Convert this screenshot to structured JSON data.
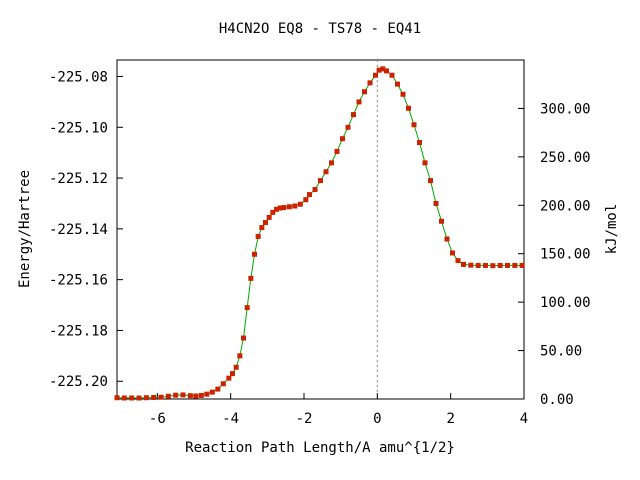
{
  "chart_data": {
    "type": "line",
    "title": "H4CN2O   EQ8 - TS78 - EQ41",
    "xlabel": "Reaction Path Length/A amu^{1/2}",
    "ylabel": "Energy/Hartree",
    "y2label": "kJ/mol",
    "xlim": [
      -7.1,
      4.0
    ],
    "ylim": [
      -225.207,
      -225.0735
    ],
    "y2lim": [
      0.0,
      350.0
    ],
    "x_ticks": [
      -6,
      -4,
      -2,
      0,
      2,
      4
    ],
    "x_tick_labels": [
      "-6",
      "-4",
      "-2",
      "0",
      "2",
      "4"
    ],
    "y_ticks": [
      -225.08,
      -225.1,
      -225.12,
      -225.14,
      -225.16,
      -225.18,
      -225.2
    ],
    "y_tick_labels": [
      "-225.08",
      "-225.10",
      "-225.12",
      "-225.14",
      "-225.16",
      "-225.18",
      "-225.20"
    ],
    "y2_ticks": [
      300,
      250,
      200,
      150,
      100,
      50,
      0
    ],
    "y2_tick_labels": [
      "300.00",
      "250.00",
      "200.00",
      "150.00",
      "100.00",
      "50.00",
      "0.00"
    ],
    "ts_marker_x": 0.0,
    "grid": false,
    "series": [
      {
        "line_color": "#00aa00",
        "marker_color": "#cc2200",
        "points": [
          [
            -7.1,
            -225.2065
          ],
          [
            -6.9,
            -225.2066
          ],
          [
            -6.7,
            -225.2066
          ],
          [
            -6.5,
            -225.2066
          ],
          [
            -6.3,
            -225.2065
          ],
          [
            -6.1,
            -225.2064
          ],
          [
            -5.9,
            -225.2063
          ],
          [
            -5.7,
            -225.2059
          ],
          [
            -5.5,
            -225.2055
          ],
          [
            -5.3,
            -225.2054
          ],
          [
            -5.1,
            -225.2057
          ],
          [
            -4.95,
            -225.2058
          ],
          [
            -4.8,
            -225.2056
          ],
          [
            -4.65,
            -225.2051
          ],
          [
            -4.5,
            -225.2043
          ],
          [
            -4.35,
            -225.2031
          ],
          [
            -4.2,
            -225.201
          ],
          [
            -4.05,
            -225.1988
          ],
          [
            -3.95,
            -225.197
          ],
          [
            -3.85,
            -225.1945
          ],
          [
            -3.75,
            -225.19
          ],
          [
            -3.65,
            -225.183
          ],
          [
            -3.55,
            -225.171
          ],
          [
            -3.45,
            -225.1595
          ],
          [
            -3.35,
            -225.15
          ],
          [
            -3.25,
            -225.143
          ],
          [
            -3.15,
            -225.1395
          ],
          [
            -3.05,
            -225.1375
          ],
          [
            -2.95,
            -225.1355
          ],
          [
            -2.85,
            -225.1335
          ],
          [
            -2.75,
            -225.1323
          ],
          [
            -2.65,
            -225.1318
          ],
          [
            -2.55,
            -225.1316
          ],
          [
            -2.4,
            -225.1313
          ],
          [
            -2.25,
            -225.131
          ],
          [
            -2.1,
            -225.1303
          ],
          [
            -1.95,
            -225.1285
          ],
          [
            -1.85,
            -225.1265
          ],
          [
            -1.7,
            -225.1245
          ],
          [
            -1.55,
            -225.121
          ],
          [
            -1.4,
            -225.1175
          ],
          [
            -1.25,
            -225.114
          ],
          [
            -1.1,
            -225.1095
          ],
          [
            -0.95,
            -225.1045
          ],
          [
            -0.8,
            -225.1
          ],
          [
            -0.65,
            -225.095
          ],
          [
            -0.5,
            -225.09
          ],
          [
            -0.35,
            -225.086
          ],
          [
            -0.2,
            -225.0825
          ],
          [
            -0.05,
            -225.0795
          ],
          [
            0.05,
            -225.0775
          ],
          [
            0.15,
            -225.077
          ],
          [
            0.25,
            -225.0778
          ],
          [
            0.4,
            -225.0795
          ],
          [
            0.55,
            -225.083
          ],
          [
            0.7,
            -225.087
          ],
          [
            0.85,
            -225.0925
          ],
          [
            1.0,
            -225.099
          ],
          [
            1.15,
            -225.106
          ],
          [
            1.3,
            -225.114
          ],
          [
            1.45,
            -225.121
          ],
          [
            1.6,
            -225.13
          ],
          [
            1.75,
            -225.137
          ],
          [
            1.9,
            -225.144
          ],
          [
            2.05,
            -225.1495
          ],
          [
            2.2,
            -225.1525
          ],
          [
            2.35,
            -225.154
          ],
          [
            2.55,
            -225.1543
          ],
          [
            2.75,
            -225.1544
          ],
          [
            2.95,
            -225.1544
          ],
          [
            3.15,
            -225.1545
          ],
          [
            3.35,
            -225.1544
          ],
          [
            3.55,
            -225.1544
          ],
          [
            3.75,
            -225.1544
          ],
          [
            3.95,
            -225.1544
          ]
        ]
      }
    ]
  }
}
